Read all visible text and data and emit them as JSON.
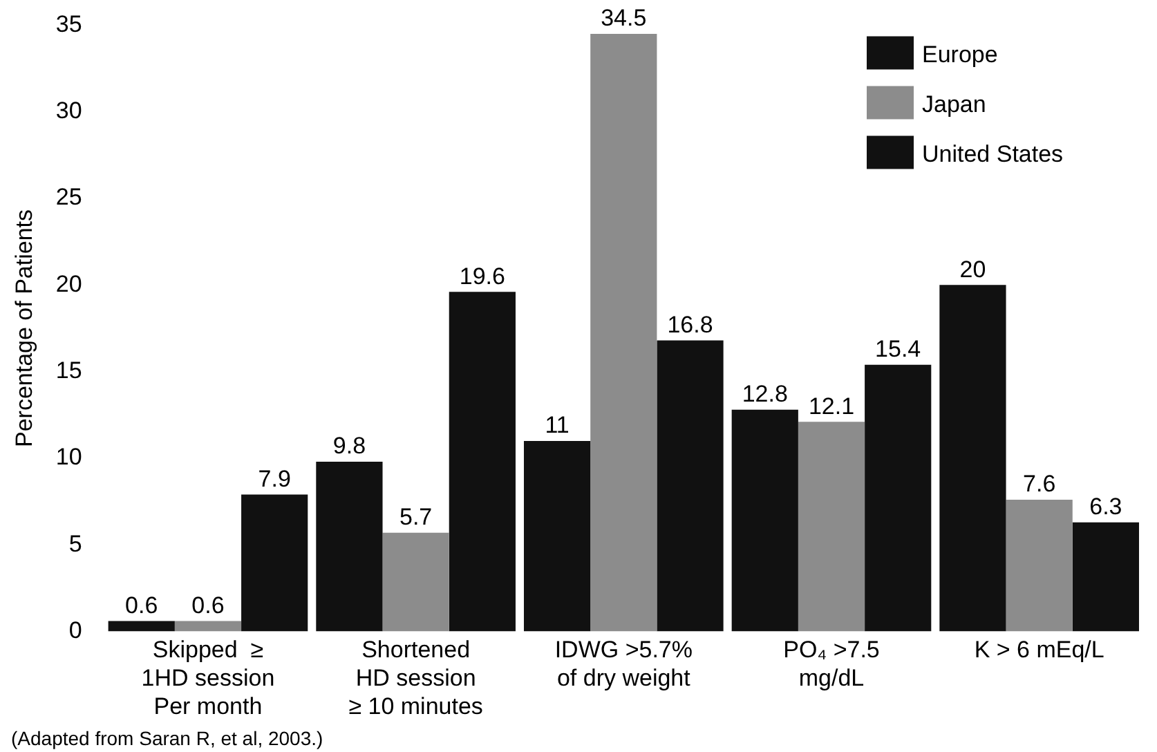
{
  "chart_data": {
    "type": "bar",
    "ylabel": "Percentage of Patients",
    "categories": [
      "Skipped  ≥\n1HD session\nPer month",
      "Shortened\nHD session\n≥ 10 minutes",
      "IDWG >5.7%\nof dry weight",
      "PO₄ >7.5\nmg/dL",
      "K > 6 mEq/L"
    ],
    "series": [
      {
        "name": "Europe",
        "color": "#111111",
        "values": [
          0.6,
          9.8,
          11,
          12.8,
          20
        ]
      },
      {
        "name": "Japan",
        "color": "#8c8c8c",
        "values": [
          0.6,
          5.7,
          34.5,
          12.1,
          7.6
        ]
      },
      {
        "name": "United States",
        "color": "#111111",
        "values": [
          7.9,
          19.6,
          16.8,
          15.4,
          6.3
        ]
      }
    ],
    "ylim": [
      0,
      35
    ],
    "yticks": [
      0,
      5,
      10,
      15,
      20,
      25,
      30,
      35
    ],
    "grid": false,
    "legend": "top right",
    "data_labels": true,
    "annotations": [
      "(Adapted from Saran R, et al, 2003.)"
    ]
  }
}
